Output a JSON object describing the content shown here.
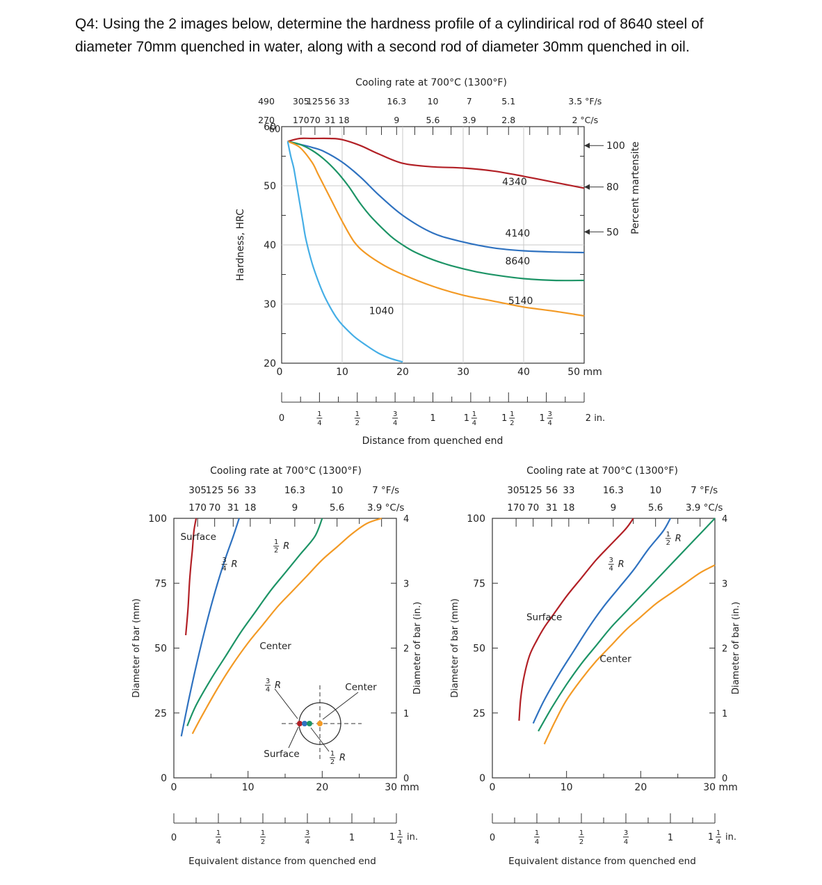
{
  "question": {
    "line1": "Q4: Using the 2 images below, determine the hardness profile of a cylindirical rod of 8640 steel of",
    "line2": "diameter 70mm quenched in water, along with a second rod of diameter 30mm quenched in oil."
  },
  "colors": {
    "c4340": "#b22026",
    "c4140": "#2f72c0",
    "c8640": "#1d9466",
    "c5140": "#f39a25",
    "c1040": "#45aee6",
    "surface": "#b22026",
    "three_quarter": "#2f72c0",
    "half": "#1d9466",
    "center": "#f39a25"
  },
  "chart_data": [
    {
      "id": "jominy",
      "type": "line",
      "title": "Cooling rate at 700°C (1300°F)",
      "xlabel": "Distance from quenched end",
      "ylabel": "Hardness, HRC",
      "y2label": "Percent martensite",
      "xlim": [
        0,
        50
      ],
      "ylim": [
        20,
        60
      ],
      "x_unit": "50 mm",
      "xticks": [
        0,
        10,
        20,
        30,
        40
      ],
      "yticks": [
        20,
        30,
        40,
        50,
        60
      ],
      "inch_ticks": [
        {
          "v": 0,
          "label": "0",
          "frac": false
        },
        {
          "v": 0.25,
          "num": "1",
          "den": "4",
          "frac": true
        },
        {
          "v": 0.5,
          "num": "1",
          "den": "2",
          "frac": true
        },
        {
          "v": 0.75,
          "num": "3",
          "den": "4",
          "frac": true
        },
        {
          "v": 1,
          "label": "1",
          "frac": false
        },
        {
          "v": 1.25,
          "whole": "1",
          "num": "1",
          "den": "4",
          "frac": true
        },
        {
          "v": 1.5,
          "whole": "1",
          "num": "1",
          "den": "2",
          "frac": true
        },
        {
          "v": 1.75,
          "whole": "1",
          "num": "3",
          "den": "4",
          "frac": true
        },
        {
          "v": 2,
          "label": "2 in.",
          "frac": false
        }
      ],
      "cooling_rate_F": [
        {
          "d": 0.0,
          "label": "490"
        },
        {
          "d": 3.2,
          "label": "305"
        },
        {
          "d": 5.5,
          "label": "125"
        },
        {
          "d": 8.0,
          "label": "56"
        },
        {
          "d": 10.3,
          "label": "33"
        },
        {
          "d": 19.0,
          "label": "16.3"
        },
        {
          "d": 25.0,
          "label": "10"
        },
        {
          "d": 31.0,
          "label": "7"
        },
        {
          "d": 37.5,
          "label": "5.1"
        },
        {
          "d": 49.0,
          "label": "3.5 °F/s"
        }
      ],
      "cooling_rate_C": [
        {
          "d": 0.0,
          "label": "270"
        },
        {
          "d": 3.2,
          "label": "170"
        },
        {
          "d": 5.5,
          "label": "70"
        },
        {
          "d": 8.0,
          "label": "31"
        },
        {
          "d": 10.3,
          "label": "18"
        },
        {
          "d": 19.0,
          "label": "9"
        },
        {
          "d": 25.0,
          "label": "5.6"
        },
        {
          "d": 31.0,
          "label": "3.9"
        },
        {
          "d": 37.5,
          "label": "2.8"
        },
        {
          "d": 49.0,
          "label": "2 °C/s"
        }
      ],
      "martensite": [
        {
          "label": "100",
          "hrc": 56.8
        },
        {
          "label": "80",
          "hrc": 49.8
        },
        {
          "label": "50",
          "hrc": 42.2
        }
      ],
      "series": [
        {
          "name": "4340",
          "color_key": "c4340",
          "label_at": [
            38.5,
            50.1
          ],
          "x": [
            1,
            3,
            5,
            8,
            10,
            13,
            16,
            20,
            25,
            30,
            35,
            40,
            45,
            50
          ],
          "y": [
            57.5,
            58,
            58,
            58,
            57.8,
            56.8,
            55.4,
            53.8,
            53.2,
            53,
            52.5,
            51.6,
            50.6,
            49.6
          ]
        },
        {
          "name": "4140",
          "color_key": "c4140",
          "label_at": [
            39,
            41.4
          ],
          "x": [
            1,
            3,
            5,
            7,
            10,
            13,
            16,
            20,
            25,
            30,
            35,
            40,
            45,
            50
          ],
          "y": [
            57.5,
            57,
            56.5,
            55.8,
            54,
            51.5,
            48.5,
            45,
            42,
            40.5,
            39.5,
            39,
            38.8,
            38.7
          ]
        },
        {
          "name": "8640",
          "color_key": "c8640",
          "label_at": [
            39,
            36.7
          ],
          "x": [
            1,
            3,
            5,
            7,
            9,
            11,
            13,
            15,
            18,
            20,
            22,
            25,
            28,
            32,
            36,
            40,
            45,
            50
          ],
          "y": [
            57.5,
            57,
            56,
            54.5,
            52.5,
            50,
            47,
            44.5,
            41.5,
            40,
            38.8,
            37.5,
            36.5,
            35.5,
            34.8,
            34.3,
            34,
            34
          ]
        },
        {
          "name": "5140",
          "color_key": "c5140",
          "label_at": [
            39.5,
            30
          ]
        },
        {
          "name": "1040",
          "color_key": "c1040",
          "label_at": [
            16.5,
            28.3
          ],
          "x": [
            1,
            1.5,
            2,
            2.5,
            3,
            3.5,
            4,
            5,
            6,
            7,
            8,
            9,
            10,
            12,
            14,
            16,
            18,
            20
          ],
          "y": [
            57.5,
            55,
            53,
            50,
            47,
            44,
            41,
            37,
            34,
            31.5,
            29.5,
            27.8,
            26.5,
            24.5,
            23,
            21.7,
            20.8,
            20.2
          ]
        }
      ],
      "series_5140": {
        "x": [
          1,
          3,
          5,
          6,
          7,
          8,
          10,
          12,
          14,
          17,
          20,
          25,
          30,
          35,
          40,
          45,
          50
        ],
        "y": [
          57.5,
          56.5,
          54,
          52,
          50,
          48,
          44,
          40.5,
          38.5,
          36.5,
          35,
          33,
          31.5,
          30.5,
          29.5,
          28.8,
          28
        ]
      }
    },
    {
      "id": "water",
      "type": "line",
      "title": "Cooling rate at 700°C (1300°F)",
      "xlabel": "Equivalent distance from quenched end",
      "ylabel": "Diameter of bar (mm)",
      "y2label": "Diameter of bar (in.)",
      "xlim": [
        0,
        30
      ],
      "ylim": [
        0,
        100
      ],
      "x_unit": "30  mm",
      "xticks": [
        0,
        10,
        20
      ],
      "yticks": [
        0,
        25,
        50,
        75,
        100
      ],
      "y_in_ticks": [
        "0",
        "1",
        "2",
        "3",
        "4"
      ],
      "cooling_rate_F": [
        {
          "d": 3.2,
          "label": "305"
        },
        {
          "d": 5.5,
          "label": "125"
        },
        {
          "d": 8.0,
          "label": "56"
        },
        {
          "d": 10.3,
          "label": "33"
        },
        {
          "d": 16.3,
          "label": "16.3"
        },
        {
          "d": 22.0,
          "label": "10"
        },
        {
          "d": 28.0,
          "label": "7  °F/s"
        }
      ],
      "cooling_rate_C": [
        {
          "d": 3.2,
          "label": "170"
        },
        {
          "d": 5.5,
          "label": "70"
        },
        {
          "d": 8.0,
          "label": "31"
        },
        {
          "d": 10.3,
          "label": "18"
        },
        {
          "d": 16.3,
          "label": "9"
        },
        {
          "d": 22.0,
          "label": "5.6"
        },
        {
          "d": 28.0,
          "label": "3.9 °C/s"
        }
      ],
      "inch_ticks": [
        {
          "v": 0,
          "label": "0",
          "frac": false
        },
        {
          "v": 0.25,
          "num": "1",
          "den": "4",
          "frac": true
        },
        {
          "v": 0.5,
          "num": "1",
          "den": "2",
          "frac": true
        },
        {
          "v": 0.75,
          "num": "3",
          "den": "4",
          "frac": true
        },
        {
          "v": 1,
          "label": "1",
          "frac": false
        },
        {
          "v": 1.25,
          "whole": "1",
          "num": "1",
          "den": "4",
          "frac": true,
          "suffix": " in."
        }
      ],
      "series": [
        {
          "name": "Surface",
          "color_key": "surface",
          "x": [
            1.6,
            1.9,
            2.1,
            2.3,
            2.5,
            2.7,
            3.0
          ],
          "y": [
            55,
            65,
            75,
            82,
            88,
            95,
            100
          ]
        },
        {
          "name": "3/4R",
          "color_key": "three_quarter",
          "x": [
            1.0,
            2.0,
            3.0,
            4.0,
            5.0,
            6.0,
            7.0,
            8.0,
            8.8
          ],
          "y": [
            16,
            30,
            43,
            55,
            66,
            76,
            85,
            93,
            100
          ]
        },
        {
          "name": "1/2R",
          "color_key": "half",
          "x": [
            1.8,
            3.0,
            5.0,
            7.0,
            9.0,
            11.0,
            13.0,
            15.0,
            17.0,
            19.0,
            20.0
          ],
          "y": [
            20,
            28,
            38,
            47,
            56,
            64,
            72,
            79,
            86,
            93,
            100
          ]
        },
        {
          "name": "Center",
          "color_key": "center",
          "x": [
            2.5,
            4.0,
            6.0,
            8.0,
            10.0,
            12.0,
            14.0,
            16.0,
            18.0,
            20.0,
            22.0,
            24.0,
            26.0,
            28.0
          ],
          "y": [
            17,
            25,
            35,
            44,
            52,
            59,
            66,
            72,
            78,
            84,
            89,
            94,
            98,
            100
          ]
        }
      ],
      "labels": {
        "surface": "Surface",
        "center": "Center",
        "three_quarter": "R",
        "half": "R",
        "diagram_surface": "Surface",
        "diagram_center": "Center",
        "diagram_three_quarter": "R",
        "diagram_half": "R"
      }
    },
    {
      "id": "oil",
      "type": "line",
      "title": "Cooling rate at 700°C (1300°F)",
      "xlabel": "Equivalent distance from quenched end",
      "ylabel": "Diameter of bar (mm)",
      "y2label": "Diameter of bar (in.)",
      "xlim": [
        0,
        30
      ],
      "ylim": [
        0,
        100
      ],
      "x_unit": "30  mm",
      "xticks": [
        0,
        10,
        20
      ],
      "yticks": [
        0,
        25,
        50,
        75,
        100
      ],
      "y_in_ticks": [
        "0",
        "1",
        "2",
        "3",
        "4"
      ],
      "cooling_rate_F": [
        {
          "d": 3.2,
          "label": "305"
        },
        {
          "d": 5.5,
          "label": "125"
        },
        {
          "d": 8.0,
          "label": "56"
        },
        {
          "d": 10.3,
          "label": "33"
        },
        {
          "d": 16.3,
          "label": "16.3"
        },
        {
          "d": 22.0,
          "label": "10"
        },
        {
          "d": 28.0,
          "label": "7  °F/s"
        }
      ],
      "cooling_rate_C": [
        {
          "d": 3.2,
          "label": "170"
        },
        {
          "d": 5.5,
          "label": "70"
        },
        {
          "d": 8.0,
          "label": "31"
        },
        {
          "d": 10.3,
          "label": "18"
        },
        {
          "d": 16.3,
          "label": "9"
        },
        {
          "d": 22.0,
          "label": "5.6"
        },
        {
          "d": 28.0,
          "label": "3.9 °C/s"
        }
      ],
      "inch_ticks": [
        {
          "v": 0,
          "label": "0",
          "frac": false
        },
        {
          "v": 0.25,
          "num": "1",
          "den": "4",
          "frac": true
        },
        {
          "v": 0.5,
          "num": "1",
          "den": "2",
          "frac": true
        },
        {
          "v": 0.75,
          "num": "3",
          "den": "4",
          "frac": true
        },
        {
          "v": 1,
          "label": "1",
          "frac": false
        },
        {
          "v": 1.25,
          "whole": "1",
          "num": "1",
          "den": "4",
          "frac": true,
          "suffix": " in."
        }
      ],
      "series": [
        {
          "name": "Surface",
          "color_key": "surface",
          "x": [
            3.6,
            3.8,
            4.2,
            5.0,
            6.0,
            7.0,
            8.0,
            10.0,
            12.0,
            14.0,
            16.0,
            18.0,
            19.0
          ],
          "y": [
            22,
            30,
            38,
            47,
            53,
            58,
            62,
            70,
            77,
            84,
            90,
            96,
            100
          ]
        },
        {
          "name": "3/4R",
          "color_key": "three_quarter",
          "x": [
            5.5,
            7.0,
            9.0,
            11.0,
            13.0,
            15.0,
            17.0,
            19.0,
            21.0,
            23.0,
            24.0
          ],
          "y": [
            21,
            30,
            40,
            49,
            58,
            66,
            73,
            80,
            88,
            95,
            100
          ]
        },
        {
          "name": "1/2R",
          "color_key": "half",
          "x": [
            6.2,
            8.0,
            10.0,
            12.0,
            14.0,
            16.0,
            18.0,
            20.0,
            22.0,
            24.0,
            26.0,
            28.0,
            30.0
          ],
          "y": [
            18,
            27,
            36,
            44,
            51,
            58,
            64,
            70,
            76,
            82,
            88,
            94,
            100
          ]
        },
        {
          "name": "Center",
          "color_key": "center",
          "x": [
            7.0,
            8.5,
            10.0,
            12.0,
            14.0,
            16.0,
            18.0,
            20.0,
            22.0,
            24.0,
            26.0,
            28.0,
            30.0
          ],
          "y": [
            13,
            22,
            30,
            38,
            45,
            51,
            57,
            62,
            67,
            71,
            75,
            79,
            82
          ]
        }
      ],
      "labels": {
        "surface": "Surface",
        "center": "Center",
        "three_quarter": "R",
        "half": "R"
      }
    }
  ],
  "fractions": {
    "three_quarter": {
      "num": "3",
      "den": "4"
    },
    "half": {
      "num": "1",
      "den": "2"
    }
  }
}
